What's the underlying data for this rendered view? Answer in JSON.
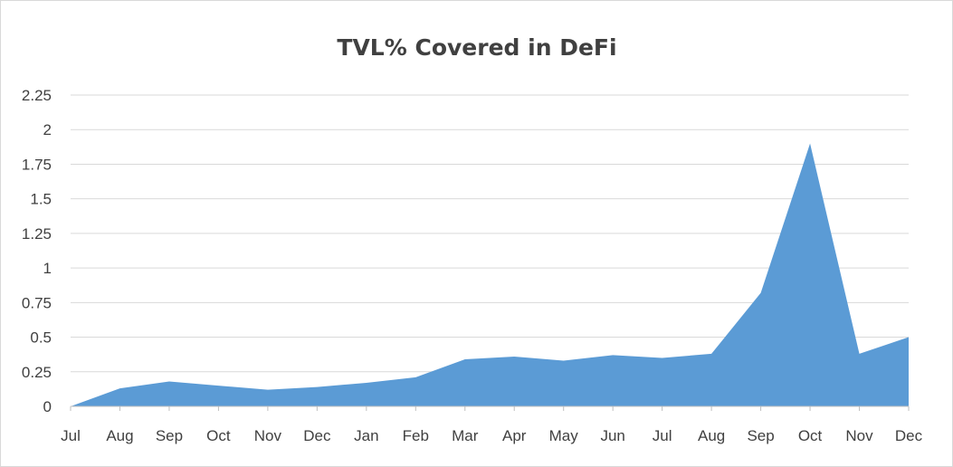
{
  "chart_data": {
    "type": "area",
    "title": "TVL% Covered in DeFi",
    "xlabel": "",
    "ylabel": "",
    "categories": [
      "Jul",
      "Aug",
      "Sep",
      "Oct",
      "Nov",
      "Dec",
      "Jan",
      "Feb",
      "Mar",
      "Apr",
      "May",
      "Jun",
      "Jul",
      "Aug",
      "Sep",
      "Oct",
      "Nov",
      "Dec"
    ],
    "values": [
      0.0,
      0.13,
      0.18,
      0.15,
      0.12,
      0.14,
      0.17,
      0.21,
      0.34,
      0.36,
      0.33,
      0.37,
      0.35,
      0.38,
      0.82,
      1.9,
      0.38,
      0.5
    ],
    "ylim": [
      0,
      2.25
    ],
    "yticks": [
      "0",
      "0.25",
      "0.5",
      "0.75",
      "1",
      "1.25",
      "1.5",
      "1.75",
      "2",
      "2.25"
    ],
    "grid": true,
    "legend": "none",
    "fill_color": "#5b9bd5"
  }
}
